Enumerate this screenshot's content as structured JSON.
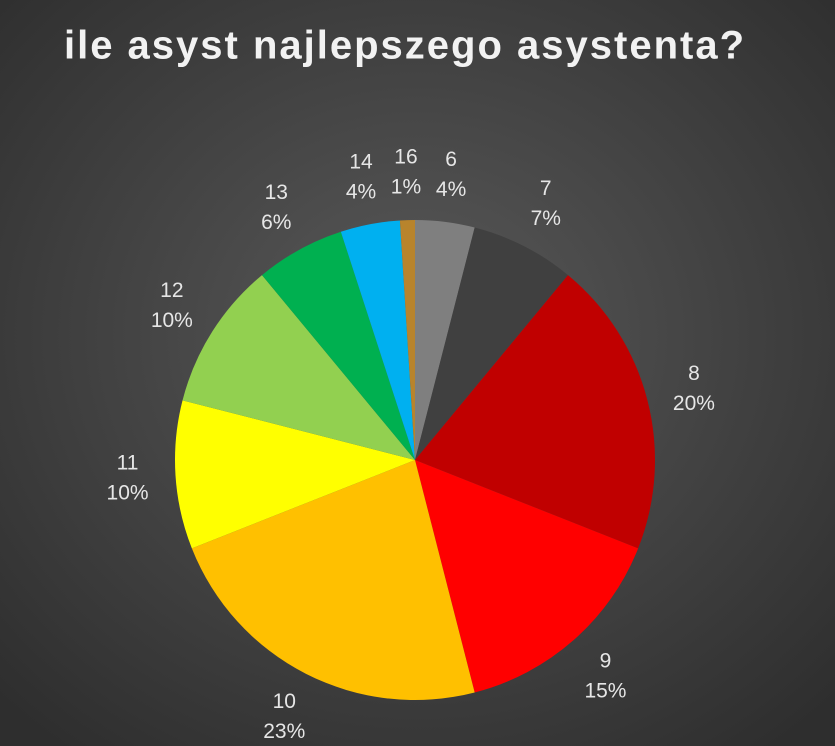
{
  "chart_data": {
    "type": "pie",
    "title": "ile asyst najlepszego asystenta?",
    "categories": [
      "6",
      "7",
      "8",
      "9",
      "10",
      "11",
      "12",
      "13",
      "14",
      "16"
    ],
    "values": [
      4,
      7,
      20,
      15,
      23,
      10,
      10,
      6,
      4,
      1
    ],
    "value_labels": [
      "4%",
      "7%",
      "20%",
      "15%",
      "23%",
      "10%",
      "10%",
      "6%",
      "4%",
      "1%"
    ],
    "colors": [
      "#7f7f7f",
      "#404040",
      "#c00000",
      "#ff0000",
      "#ffc000",
      "#ffff00",
      "#92d050",
      "#00b050",
      "#00b0f0",
      "#b8842c"
    ]
  }
}
